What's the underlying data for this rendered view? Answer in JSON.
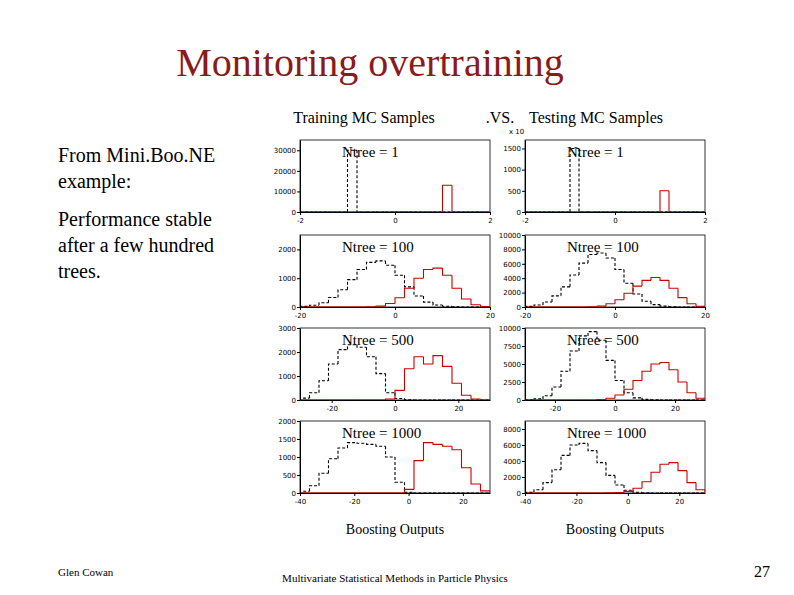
{
  "slide": {
    "title": "Monitoring overtraining",
    "body": [
      [
        "From Mini.Boo.NE",
        "example:"
      ],
      [
        "Performance stable",
        "after a few hundred",
        "trees."
      ]
    ],
    "left_header": "Training MC Samples",
    "middle_header": ".VS.",
    "right_header": "Testing MC Samples",
    "x_caption": "Boosting Outputs",
    "footer_left": "Glen Cowan",
    "footer_center": "Multivariate Statistical Methods in Particle Physics",
    "page_number": "27"
  },
  "chart_data": [
    {
      "type": "histogram",
      "title": "Ntree = 1",
      "bins": [
        -2,
        -1.8,
        -1.6,
        -1.4,
        -1.2,
        -1,
        -0.8,
        -0.6,
        -0.4,
        -0.2,
        0,
        0.2,
        0.4,
        0.6,
        0.8,
        1,
        1.2,
        1.4,
        1.6,
        1.8,
        2
      ],
      "series": [
        {
          "color": "#000000",
          "line_style": "dashed",
          "values": [
            0,
            0,
            0,
            0,
            0,
            30000,
            0,
            0,
            0,
            0,
            0,
            0,
            0,
            0,
            0,
            0,
            0,
            0,
            0,
            0
          ]
        },
        {
          "color": "#cc0000",
          "line_style": "solid",
          "values": [
            0,
            0,
            0,
            0,
            0,
            0,
            0,
            0,
            0,
            0,
            0,
            0,
            0,
            0,
            0,
            13000,
            0,
            0,
            0,
            0
          ]
        }
      ],
      "xlim": [
        -2,
        2
      ],
      "xticks": [
        -2,
        0,
        2
      ],
      "ylim": [
        0,
        35000
      ],
      "yticks": [
        0,
        10000,
        20000,
        30000
      ]
    },
    {
      "type": "histogram",
      "title": "Ntree = 1",
      "annotations": [
        "x 10"
      ],
      "bins": [
        -2,
        -1.8,
        -1.6,
        -1.4,
        -1.2,
        -1,
        -0.8,
        -0.6,
        -0.4,
        -0.2,
        0,
        0.2,
        0.4,
        0.6,
        0.8,
        1,
        1.2,
        1.4,
        1.6,
        1.8,
        2
      ],
      "series": [
        {
          "color": "#000000",
          "line_style": "dashed",
          "values": [
            0,
            0,
            0,
            0,
            0,
            1500,
            0,
            0,
            0,
            0,
            0,
            0,
            0,
            0,
            0,
            0,
            0,
            0,
            0,
            0
          ]
        },
        {
          "color": "#cc0000",
          "line_style": "solid",
          "values": [
            0,
            0,
            0,
            0,
            0,
            0,
            0,
            0,
            0,
            0,
            0,
            0,
            0,
            0,
            0,
            500,
            0,
            0,
            0,
            0
          ]
        }
      ],
      "xlim": [
        -2,
        2
      ],
      "xticks": [
        -2,
        0,
        2
      ],
      "ylim": [
        0,
        1700
      ],
      "yticks": [
        0,
        500,
        1000,
        1500
      ]
    },
    {
      "type": "histogram",
      "title": "Ntree = 100",
      "bins": [
        -20,
        -18,
        -16,
        -14,
        -12,
        -10,
        -8,
        -6,
        -4,
        -2,
        0,
        2,
        4,
        6,
        8,
        10,
        12,
        14,
        16,
        18,
        20
      ],
      "series": [
        {
          "color": "#000000",
          "line_style": "dashed",
          "values": [
            20,
            60,
            150,
            330,
            600,
            950,
            1300,
            1550,
            1600,
            1450,
            1100,
            700,
            380,
            170,
            70,
            25,
            8,
            2,
            0,
            0
          ]
        },
        {
          "color": "#cc0000",
          "line_style": "solid",
          "values": [
            0,
            0,
            0,
            0,
            0,
            0,
            0,
            5,
            30,
            120,
            320,
            650,
            1000,
            1300,
            1350,
            1100,
            650,
            280,
            80,
            15
          ]
        }
      ],
      "xlim": [
        -20,
        20
      ],
      "xticks": [
        -20,
        0,
        20
      ],
      "ylim": [
        0,
        2500
      ],
      "yticks": [
        0,
        1000,
        2000
      ]
    },
    {
      "type": "histogram",
      "title": "Ntree = 100",
      "bins": [
        -20,
        -18,
        -16,
        -14,
        -12,
        -10,
        -8,
        -6,
        -4,
        -2,
        0,
        2,
        4,
        6,
        8,
        10,
        12,
        14,
        16,
        18,
        20
      ],
      "series": [
        {
          "color": "#000000",
          "line_style": "dashed",
          "values": [
            90,
            280,
            700,
            1550,
            2800,
            4450,
            6100,
            7300,
            7500,
            6800,
            5200,
            3300,
            1800,
            800,
            330,
            120,
            40,
            10,
            0,
            0
          ]
        },
        {
          "color": "#cc0000",
          "line_style": "solid",
          "values": [
            0,
            0,
            0,
            0,
            0,
            0,
            0,
            20,
            120,
            450,
            1000,
            1900,
            2900,
            3700,
            4100,
            3700,
            2600,
            1300,
            450,
            100
          ]
        }
      ],
      "xlim": [
        -20,
        20
      ],
      "xticks": [
        -20,
        0,
        20
      ],
      "ylim": [
        0,
        10000
      ],
      "yticks": [
        0,
        2000,
        4000,
        6000,
        8000,
        10000
      ]
    },
    {
      "type": "histogram",
      "title": "Ntree = 500",
      "bins": [
        -30,
        -27,
        -24,
        -21,
        -18,
        -15,
        -12,
        -9,
        -6,
        -3,
        0,
        3,
        6,
        9,
        12,
        15,
        18,
        21,
        24,
        27,
        30
      ],
      "series": [
        {
          "color": "#000000",
          "line_style": "dashed",
          "values": [
            80,
            300,
            800,
            1500,
            2100,
            2300,
            2200,
            1800,
            1100,
            300,
            60,
            10,
            0,
            0,
            0,
            0,
            0,
            0,
            0,
            0
          ]
        },
        {
          "color": "#cc0000",
          "line_style": "solid",
          "values": [
            0,
            0,
            0,
            0,
            0,
            0,
            0,
            0,
            0,
            40,
            400,
            1300,
            1800,
            1500,
            1850,
            1400,
            700,
            200,
            40,
            0
          ]
        }
      ],
      "xlim": [
        -30,
        30
      ],
      "xticks": [
        -20,
        0,
        20
      ],
      "ylim": [
        0,
        3000
      ],
      "yticks": [
        0,
        1000,
        2000,
        3000
      ]
    },
    {
      "type": "histogram",
      "title": "Ntree = 500",
      "bins": [
        -30,
        -27,
        -24,
        -21,
        -18,
        -15,
        -12,
        -9,
        -6,
        -3,
        0,
        3,
        6,
        9,
        12,
        15,
        18,
        21,
        24,
        27,
        30
      ],
      "series": [
        {
          "color": "#000000",
          "line_style": "dashed",
          "values": [
            30,
            150,
            600,
            1800,
            4000,
            6800,
            8900,
            9500,
            8300,
            5500,
            2700,
            1000,
            300,
            80,
            15,
            0,
            0,
            0,
            0,
            0
          ]
        },
        {
          "color": "#cc0000",
          "line_style": "solid",
          "values": [
            0,
            0,
            0,
            0,
            0,
            0,
            0,
            10,
            60,
            250,
            700,
            1500,
            2700,
            4000,
            5000,
            5200,
            4200,
            2500,
            1000,
            250
          ]
        }
      ],
      "xlim": [
        -30,
        30
      ],
      "xticks": [
        -20,
        0,
        20
      ],
      "ylim": [
        0,
        10000
      ],
      "yticks": [
        0,
        2500,
        5000,
        7500,
        10000
      ]
    },
    {
      "type": "histogram",
      "title": "Ntree = 1000",
      "bins": [
        -40,
        -36.5,
        -33,
        -29.5,
        -26,
        -22.5,
        -19,
        -15.5,
        -12,
        -8.5,
        -5,
        -1.5,
        2,
        5.5,
        9,
        12.5,
        16,
        19.5,
        23,
        26.5,
        30
      ],
      "series": [
        {
          "color": "#000000",
          "line_style": "dashed",
          "values": [
            50,
            200,
            550,
            950,
            1250,
            1400,
            1380,
            1350,
            1300,
            1000,
            300,
            20,
            0,
            0,
            0,
            0,
            0,
            0,
            0,
            0
          ]
        },
        {
          "color": "#cc0000",
          "line_style": "solid",
          "values": [
            0,
            0,
            0,
            0,
            0,
            0,
            0,
            0,
            0,
            0,
            0,
            100,
            900,
            1400,
            1350,
            1300,
            1200,
            700,
            250,
            60
          ]
        }
      ],
      "xlim": [
        -40,
        30
      ],
      "xticks": [
        -40,
        -20,
        0,
        20
      ],
      "ylim": [
        0,
        2000
      ],
      "yticks": [
        0,
        500,
        1000,
        1500,
        2000
      ]
    },
    {
      "type": "histogram",
      "title": "Ntree = 1000",
      "bins": [
        -40,
        -36.5,
        -33,
        -29.5,
        -26,
        -22.5,
        -19,
        -15.5,
        -12,
        -8.5,
        -5,
        -1.5,
        2,
        5.5,
        9,
        12.5,
        16,
        19.5,
        23,
        26.5,
        30
      ],
      "series": [
        {
          "color": "#000000",
          "line_style": "dashed",
          "values": [
            80,
            400,
            1300,
            2900,
            4700,
            6000,
            6200,
            5300,
            3800,
            2200,
            1000,
            350,
            100,
            20,
            0,
            0,
            0,
            0,
            0,
            0
          ]
        },
        {
          "color": "#cc0000",
          "line_style": "solid",
          "values": [
            0,
            0,
            0,
            0,
            0,
            0,
            0,
            0,
            0,
            10,
            50,
            200,
            600,
            1400,
            2600,
            3600,
            3800,
            2800,
            1300,
            400
          ]
        }
      ],
      "xlim": [
        -40,
        30
      ],
      "xticks": [
        -40,
        -20,
        0,
        20
      ],
      "ylim": [
        0,
        9000
      ],
      "yticks": [
        0,
        2000,
        4000,
        6000,
        8000
      ]
    }
  ]
}
